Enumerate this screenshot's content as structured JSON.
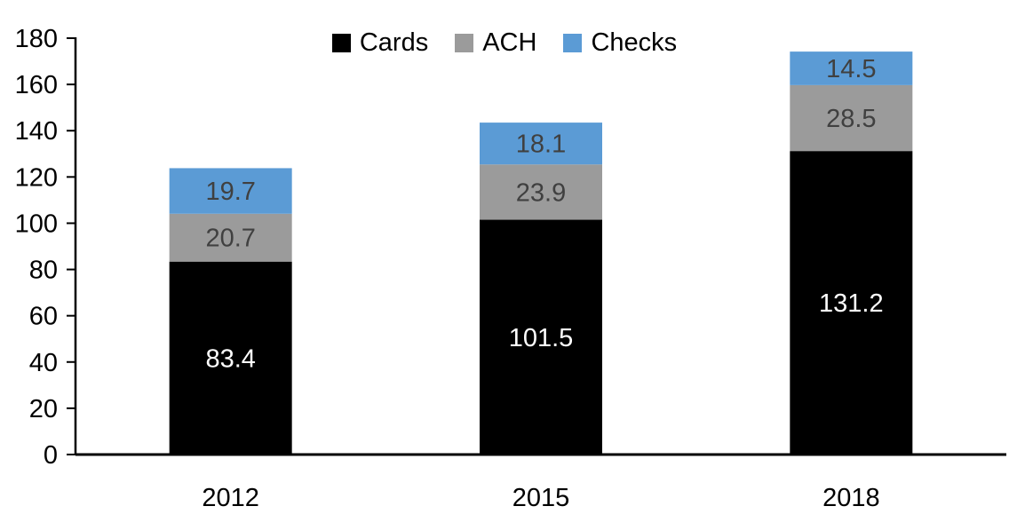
{
  "chart_data": {
    "type": "bar",
    "stacked": true,
    "title": "",
    "xlabel": "",
    "ylabel": "",
    "categories": [
      "2012",
      "2015",
      "2018"
    ],
    "series": [
      {
        "name": "Cards",
        "color": "#000000",
        "label_color": "#FFFFFF",
        "values": [
          83.4,
          101.5,
          131.2
        ]
      },
      {
        "name": "ACH",
        "color": "#9B9B9B",
        "label_color": "#404040",
        "values": [
          20.7,
          23.9,
          28.5
        ]
      },
      {
        "name": "Checks",
        "color": "#5B9BD5",
        "label_color": "#404040",
        "values": [
          19.7,
          18.1,
          14.5
        ]
      }
    ],
    "totals": [
      123.8,
      143.5,
      174.2
    ],
    "ylim": [
      0,
      180
    ],
    "yticks": [
      0,
      20,
      40,
      60,
      80,
      100,
      120,
      140,
      160,
      180
    ],
    "value_label_decimals": 1,
    "legend_position": "top-center",
    "grid": false,
    "axis_color": "#000000",
    "background": "#FFFFFF"
  }
}
